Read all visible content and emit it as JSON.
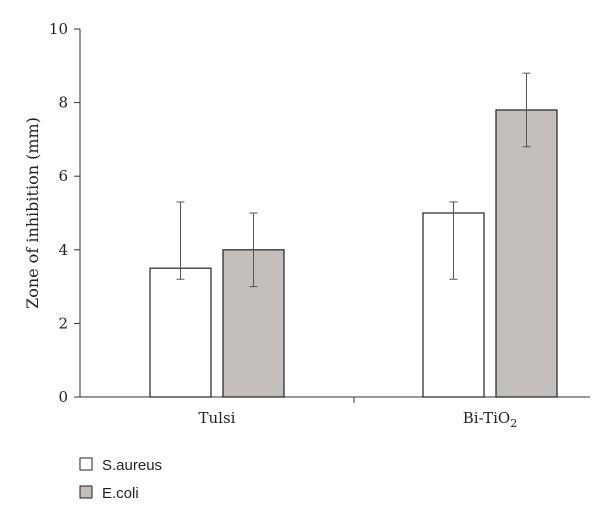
{
  "chart_data": {
    "type": "bar",
    "title": "",
    "xlabel": "",
    "ylabel": "Zone of inhibition (mm)",
    "ylim": [
      0,
      10
    ],
    "yticks": [
      0,
      2,
      4,
      6,
      8,
      10
    ],
    "categories": [
      {
        "base": "Tulsi",
        "sub": "",
        "after": ""
      },
      {
        "base": "Bi-TiO",
        "sub": "2",
        "after": ""
      }
    ],
    "series": [
      {
        "name": "S.aureus",
        "color": "#ffffff",
        "values": [
          3.5,
          5.0
        ],
        "err_low": [
          3.2,
          3.2
        ],
        "err_high": [
          5.3,
          5.3
        ]
      },
      {
        "name": "E.coli",
        "color": "#c1bebb",
        "values": [
          4.0,
          7.8
        ],
        "err_low": [
          3.0,
          6.8
        ],
        "err_high": [
          5.0,
          8.8
        ]
      }
    ],
    "legend_position": "bottom-left",
    "grid": false
  }
}
